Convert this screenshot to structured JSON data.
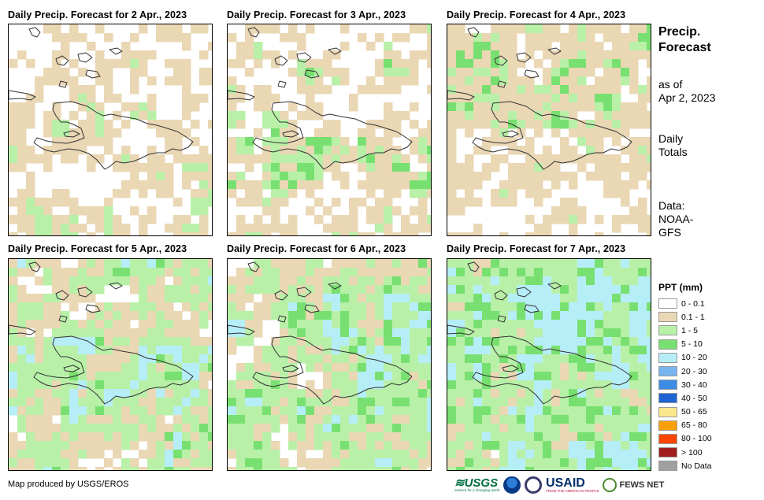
{
  "panels": [
    {
      "title": "Daily Precip. Forecast for 2 Apr., 2023",
      "seed": 11,
      "weights": [
        0.5,
        0.4,
        0.1,
        0.0,
        0.0
      ],
      "pattern": "sparse"
    },
    {
      "title": "Daily Precip. Forecast for 3 Apr., 2023",
      "seed": 23,
      "weights": [
        0.48,
        0.34,
        0.16,
        0.02,
        0.0
      ],
      "pattern": "band"
    },
    {
      "title": "Daily Precip. Forecast for 4 Apr., 2023",
      "seed": 37,
      "weights": [
        0.38,
        0.45,
        0.15,
        0.02,
        0.0
      ],
      "pattern": "north"
    },
    {
      "title": "Daily Precip. Forecast for 5 Apr., 2023",
      "seed": 41,
      "weights": [
        0.22,
        0.3,
        0.4,
        0.04,
        0.04
      ],
      "pattern": "central"
    },
    {
      "title": "Daily Precip. Forecast for 6 Apr., 2023",
      "seed": 53,
      "weights": [
        0.18,
        0.3,
        0.4,
        0.1,
        0.02
      ],
      "pattern": "east"
    },
    {
      "title": "Daily Precip. Forecast for 7 Apr., 2023",
      "seed": 67,
      "weights": [
        0.12,
        0.2,
        0.42,
        0.14,
        0.12
      ],
      "pattern": "northeast"
    }
  ],
  "sidebar": {
    "title_line1": "Precip.",
    "title_line2": "Forecast",
    "asof_line1": "as of",
    "asof_line2": "Apr 2, 2023",
    "totals_line1": "Daily",
    "totals_line2": "Totals",
    "data_line1": "Data:",
    "data_line2": "NOAA-",
    "data_line3": "GFS"
  },
  "legend": {
    "title": "PPT (mm)",
    "items": [
      {
        "label": "0 - 0.1",
        "color": "#ffffff"
      },
      {
        "label": "0.1 - 1",
        "color": "#ead7b4"
      },
      {
        "label": "1 - 5",
        "color": "#b8f0a8"
      },
      {
        "label": "5 - 10",
        "color": "#78e070"
      },
      {
        "label": "10 - 20",
        "color": "#b6eef8"
      },
      {
        "label": "20 - 30",
        "color": "#78b4f0"
      },
      {
        "label": "30 - 40",
        "color": "#3c8ce6"
      },
      {
        "label": "40 - 50",
        "color": "#1e64d2"
      },
      {
        "label": "50 - 65",
        "color": "#fae68c"
      },
      {
        "label": "65 - 80",
        "color": "#faa00a"
      },
      {
        "label": "80 - 100",
        "color": "#fa4600"
      },
      {
        "label": "> 100",
        "color": "#a01e1e"
      },
      {
        "label": "No Data",
        "color": "#a0a0a0"
      }
    ]
  },
  "footer": {
    "credit": "Map produced by USGS/EROS",
    "logo_usgs": "≋USGS",
    "logo_usgs_tagline": "science for a changing world",
    "logo_usaid": "USAID",
    "logo_usaid_tagline": "FROM THE AMERICAN PEOPLE",
    "logo_fews": "FEWS NET"
  },
  "icons": {
    "noaa": "noaa-logo-icon",
    "dhs": "dhs-seal-icon",
    "fews": "fews-leaf-icon"
  }
}
